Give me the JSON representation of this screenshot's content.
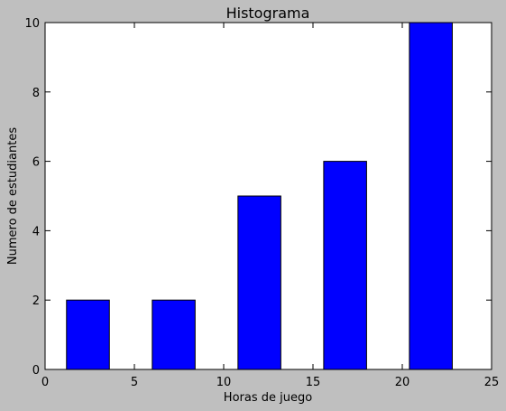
{
  "chart_data": {
    "type": "bar",
    "title": "Histograma",
    "xlabel": "Horas de juego",
    "ylabel": "Numero de estudiantes",
    "xlim": [
      0,
      25
    ],
    "ylim": [
      0,
      10
    ],
    "xticks": [
      0,
      5,
      10,
      15,
      20,
      25
    ],
    "yticks": [
      0,
      2,
      4,
      6,
      8,
      10
    ],
    "grid": false,
    "bar_color": "#0000ff",
    "bars": [
      {
        "x0": 1.2,
        "x1": 3.6,
        "value": 2
      },
      {
        "x0": 6.0,
        "x1": 8.4,
        "value": 2
      },
      {
        "x0": 10.8,
        "x1": 13.2,
        "value": 5
      },
      {
        "x0": 15.6,
        "x1": 18.0,
        "value": 6
      },
      {
        "x0": 20.4,
        "x1": 22.8,
        "value": 10
      }
    ]
  }
}
